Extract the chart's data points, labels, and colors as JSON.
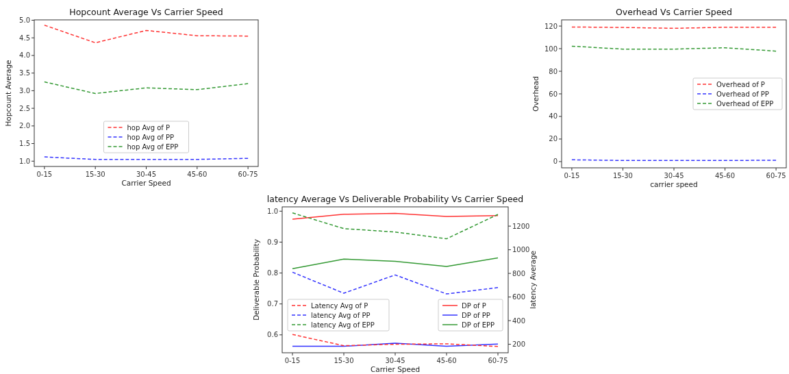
{
  "chart_data": [
    {
      "type": "line",
      "title": "Hopcount Average Vs Carrier Speed",
      "xlabel": "Carrier Speed",
      "ylabel": "Hopcount Average",
      "categories": [
        "0-15",
        "15-30",
        "30-45",
        "45-60",
        "60-75"
      ],
      "ylim": [
        0.85,
        5.01
      ],
      "yticks": [
        {
          "value": 1,
          "label": "1.0"
        },
        {
          "value": 1.5,
          "label": "1.5"
        },
        {
          "value": 2,
          "label": "2.0"
        },
        {
          "value": 2.5,
          "label": "2.5"
        },
        {
          "value": 3,
          "label": "3.0"
        },
        {
          "value": 3.5,
          "label": "3.5"
        },
        {
          "value": 4,
          "label": "4.0"
        },
        {
          "value": 4.5,
          "label": "4.5"
        },
        {
          "value": 5,
          "label": "5.0"
        }
      ],
      "line_style": "dashed",
      "legend": "bottom",
      "series": [
        {
          "name": "hop Avg of P",
          "color": "#ff3333",
          "values": [
            4.86,
            4.36,
            4.71,
            4.56,
            4.55
          ]
        },
        {
          "name": "hop Avg of PP",
          "color": "#3333ff",
          "values": [
            1.12,
            1.05,
            1.05,
            1.05,
            1.08
          ]
        },
        {
          "name": "hop Avg of EPP",
          "color": "#339933",
          "values": [
            3.25,
            2.92,
            3.08,
            3.03,
            3.2
          ]
        }
      ]
    },
    {
      "type": "line",
      "title": "Overhead Vs Carrier Speed",
      "xlabel": "carrier speed",
      "ylabel": "Overhead",
      "categories": [
        "0-15",
        "15-30",
        "30-45",
        "45-60",
        "60-75"
      ],
      "ylim": [
        -5.5,
        125.5
      ],
      "yticks": [
        0,
        20,
        40,
        60,
        80,
        100,
        120
      ],
      "line_style": "dashed",
      "legend": "right",
      "series": [
        {
          "name": "Overhead of P",
          "color": "#ff3333",
          "values": [
            119.2,
            118.8,
            118,
            119,
            119
          ]
        },
        {
          "name": "Overhead of PP",
          "color": "#3333ff",
          "values": [
            1.6,
            1,
            1,
            1,
            1.2
          ]
        },
        {
          "name": "Overhead of EPP",
          "color": "#339933",
          "values": [
            102.2,
            99.6,
            99.6,
            100.8,
            97.8
          ]
        }
      ]
    },
    {
      "type": "line",
      "title": "latency Average Vs Deliverable Probability Vs Carrier Speed",
      "xlabel": "Carrier Speed",
      "ylabel": "Deliverable Probability",
      "y2label": "latency Average",
      "categories": [
        "0-15",
        "15-30",
        "30-45",
        "45-60",
        "60-75"
      ],
      "ylim": [
        0.542,
        1.014
      ],
      "yticks": [
        0.6,
        0.7,
        0.8,
        0.9,
        {
          "value": 1,
          "label": "1.0"
        }
      ],
      "y2lim": [
        128,
        1363
      ],
      "y2ticks": [
        200,
        400,
        600,
        800,
        1000,
        1200
      ],
      "legend": "bottom",
      "series": [
        {
          "name": "DP of P",
          "color": "#ff3333",
          "line_style": "solid",
          "values": [
            0.974,
            0.99,
            0.993,
            0.983,
            0.986
          ]
        },
        {
          "name": "DP of PP",
          "color": "#3333ff",
          "line_style": "solid",
          "values": [
            0.563,
            0.563,
            0.573,
            0.563,
            0.57
          ]
        },
        {
          "name": "DP of EPP",
          "color": "#339933",
          "line_style": "solid",
          "values": [
            0.814,
            0.845,
            0.838,
            0.821,
            0.849
          ]
        },
        {
          "name": "Latency Avg of P",
          "color": "#ff3333",
          "line_style": "dashed",
          "axis": "y2",
          "values": [
            283,
            188,
            200,
            204,
            181
          ]
        },
        {
          "name": "latency Avg of PP",
          "color": "#3333ff",
          "line_style": "dashed",
          "axis": "y2",
          "values": [
            810,
            632,
            787,
            626,
            680
          ]
        },
        {
          "name": "latency Avg of EPP",
          "color": "#339933",
          "line_style": "dashed",
          "axis": "y2",
          "values": [
            1312,
            1179,
            1150,
            1093,
            1299
          ]
        }
      ]
    }
  ]
}
